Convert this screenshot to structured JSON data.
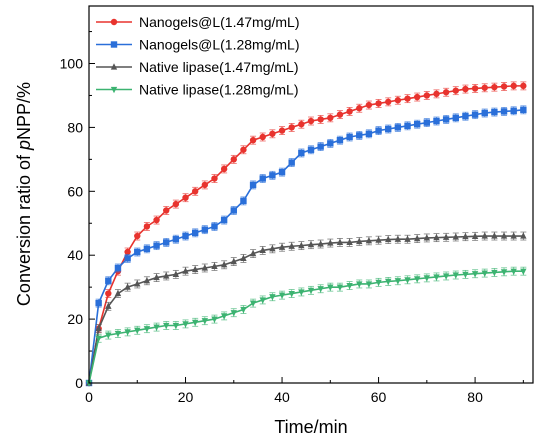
{
  "chart_data": {
    "type": "line",
    "title": "",
    "xlabel": "Time/min",
    "ylabel_parts": [
      "Conversion ratio of ",
      "p",
      "NPP/%"
    ],
    "xlim": [
      0,
      92
    ],
    "ylim": [
      0,
      118
    ],
    "xticks": [
      0,
      20,
      40,
      60,
      80
    ],
    "yticks": [
      0,
      20,
      40,
      60,
      80,
      100
    ],
    "grid": false,
    "legend_position": "top-left",
    "x": [
      0,
      2,
      4,
      6,
      8,
      10,
      12,
      14,
      16,
      18,
      20,
      22,
      24,
      26,
      28,
      30,
      32,
      34,
      36,
      38,
      40,
      42,
      44,
      46,
      48,
      50,
      52,
      54,
      56,
      58,
      60,
      62,
      64,
      66,
      68,
      70,
      72,
      74,
      76,
      78,
      80,
      82,
      84,
      86,
      88,
      90
    ],
    "series": [
      {
        "name": "Nanogels@L(1.47mg/mL)",
        "color": "#e8332e",
        "marker": "circle",
        "values": [
          0,
          17,
          28,
          35,
          41,
          46,
          49,
          51,
          54,
          56,
          58,
          60,
          62,
          64,
          67,
          70,
          73,
          76,
          77,
          78,
          79,
          80,
          81,
          82,
          82.5,
          83,
          84,
          85,
          86,
          87,
          87.5,
          88,
          88.5,
          89,
          89.5,
          90,
          90.5,
          91,
          91.5,
          92,
          92.2,
          92.4,
          92.6,
          92.8,
          93,
          93
        ]
      },
      {
        "name": "Nanogels@L(1.28mg/mL)",
        "color": "#2a6fd9",
        "marker": "square",
        "values": [
          0,
          25,
          32,
          36,
          39,
          41,
          42,
          43,
          44,
          45,
          46,
          47,
          48,
          49,
          51,
          54,
          57,
          62,
          64,
          65,
          66,
          69,
          72,
          73,
          74,
          75,
          76,
          77,
          77.5,
          78,
          79,
          79.5,
          80,
          80.5,
          81,
          81.5,
          82,
          82.5,
          83,
          83.5,
          84,
          84.5,
          84.8,
          85,
          85.2,
          85.5
        ]
      },
      {
        "name": "Native lipase(1.47mg/mL)",
        "color": "#555555",
        "marker": "triangle-up",
        "values": [
          0,
          17,
          24,
          28,
          30,
          31,
          32,
          33,
          33.5,
          34,
          35,
          35.5,
          36,
          36.5,
          37,
          38,
          39,
          40.5,
          41.5,
          42,
          42.5,
          42.8,
          43,
          43.3,
          43.5,
          43.8,
          44,
          44,
          44.3,
          44.5,
          44.7,
          44.9,
          45,
          45,
          45.2,
          45.4,
          45.5,
          45.6,
          45.7,
          45.8,
          45.9,
          46,
          46,
          46,
          46,
          46
        ]
      },
      {
        "name": "Native lipase(1.28mg/mL)",
        "color": "#3cb371",
        "marker": "triangle-down",
        "values": [
          0,
          14,
          15,
          15.5,
          16,
          16.5,
          17,
          17.5,
          18,
          18,
          18.5,
          19,
          19.5,
          20,
          21,
          22,
          23,
          25,
          26,
          27,
          27.5,
          28,
          28.5,
          29,
          29.5,
          30,
          30,
          30.5,
          31,
          31,
          31.5,
          31.8,
          32,
          32.3,
          32.6,
          32.9,
          33.2,
          33.5,
          33.8,
          34,
          34.2,
          34.4,
          34.6,
          34.8,
          35,
          35
        ]
      }
    ]
  }
}
